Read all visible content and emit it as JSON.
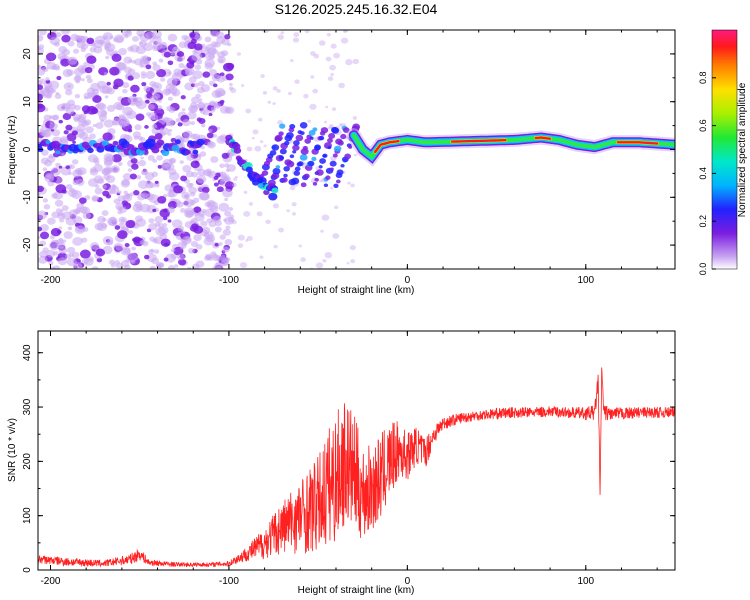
{
  "title": "S126.2025.245.16.32.E04",
  "colors": {
    "snr_line": "#ff2020",
    "spec_low": "#c9a6f2",
    "spec_mid": "#7a1de0",
    "spec_band_hi": "#ff1a1a",
    "spec_band_mid": "#2de84a",
    "axis": "#000000"
  },
  "chart_data": [
    {
      "type": "heatmap",
      "title": "S126.2025.245.16.32.E04",
      "xlabel": "Height of straight line (km)",
      "ylabel": "Frequency (Hz)",
      "xlim": [
        -207,
        150
      ],
      "ylim": [
        -25,
        25
      ],
      "x_ticks": [
        -200,
        -100,
        0,
        100
      ],
      "x_tick_labels": [
        "-200",
        "-100",
        "0",
        "100"
      ],
      "y_ticks": [
        -20,
        -10,
        0,
        10,
        20
      ],
      "y_tick_labels": [
        "-20",
        "-10",
        "0",
        "10",
        "20"
      ],
      "colorbar": {
        "label": "Normalized spectral amplitude",
        "range": [
          0,
          1
        ],
        "ticks": [
          0.0,
          0.2,
          0.4,
          0.6,
          0.8
        ],
        "tick_labels": [
          "0.0",
          "0.2",
          "0.4",
          "0.6",
          "0.8"
        ]
      },
      "features": [
        {
          "name": "scattered noise",
          "x_range": [
            -207,
            -98
          ],
          "freq_range": [
            -25,
            25
          ],
          "amplitude": 0.08
        },
        {
          "name": "early line",
          "x_range": [
            -207,
            -115
          ],
          "freq": 0.5,
          "amplitude": 0.2
        },
        {
          "name": "descending streak",
          "points": [
            [
              -100,
              3
            ],
            [
              -95,
              -1
            ],
            [
              -90,
              -4
            ],
            [
              -85,
              -6
            ],
            [
              -80,
              -8
            ],
            [
              -75,
              -9
            ]
          ],
          "amplitude": 0.25
        },
        {
          "name": "striated patches",
          "x_range": [
            -75,
            -30
          ],
          "freq_range": [
            -6,
            6
          ],
          "amplitude": 0.2
        },
        {
          "name": "signal band",
          "points": [
            [
              -30,
              3
            ],
            [
              -25,
              0
            ],
            [
              -20,
              -1.5
            ],
            [
              -15,
              1
            ],
            [
              -10,
              1.5
            ],
            [
              0,
              2
            ],
            [
              10,
              1.5
            ],
            [
              30,
              1.7
            ],
            [
              60,
              2
            ],
            [
              75,
              2.5
            ],
            [
              85,
              2
            ],
            [
              95,
              1
            ],
            [
              105,
              0.5
            ],
            [
              115,
              1.5
            ],
            [
              130,
              1.5
            ],
            [
              150,
              1
            ]
          ],
          "amplitude": 0.95
        }
      ]
    },
    {
      "type": "line",
      "xlabel": "Height of straight line (km)",
      "ylabel": "SNR (10 * v/v)",
      "xlim": [
        -207,
        150
      ],
      "ylim": [
        0,
        440
      ],
      "x_ticks": [
        -200,
        -100,
        0,
        100
      ],
      "x_tick_labels": [
        "-200",
        "-100",
        "0",
        "100"
      ],
      "y_ticks": [
        0,
        100,
        200,
        300,
        400
      ],
      "y_tick_labels": [
        "0",
        "100",
        "200",
        "300",
        "400"
      ],
      "series": [
        {
          "name": "SNR",
          "x": [
            -207,
            -190,
            -170,
            -155,
            -150,
            -145,
            -130,
            -120,
            -110,
            -100,
            -90,
            -80,
            -70,
            -60,
            -50,
            -45,
            -40,
            -35,
            -30,
            -25,
            -20,
            -15,
            -10,
            -5,
            0,
            5,
            10,
            15,
            20,
            30,
            40,
            50,
            60,
            70,
            80,
            90,
            100,
            105,
            107,
            108,
            109,
            110,
            115,
            130,
            150
          ],
          "values": [
            20,
            15,
            12,
            20,
            30,
            14,
            10,
            10,
            10,
            12,
            30,
            50,
            80,
            100,
            120,
            150,
            170,
            200,
            180,
            140,
            150,
            170,
            200,
            220,
            210,
            230,
            215,
            250,
            270,
            280,
            285,
            288,
            290,
            290,
            292,
            290,
            288,
            290,
            350,
            130,
            380,
            290,
            287,
            290,
            290
          ],
          "noise_amplitude": [
            8,
            8,
            6,
            10,
            12,
            6,
            4,
            4,
            4,
            5,
            14,
            30,
            50,
            70,
            90,
            110,
            120,
            120,
            110,
            90,
            80,
            80,
            70,
            55,
            45,
            35,
            30,
            18,
            12,
            10,
            10,
            10,
            10,
            10,
            10,
            10,
            12,
            14,
            20,
            20,
            20,
            14,
            12,
            10,
            10
          ]
        }
      ]
    }
  ]
}
